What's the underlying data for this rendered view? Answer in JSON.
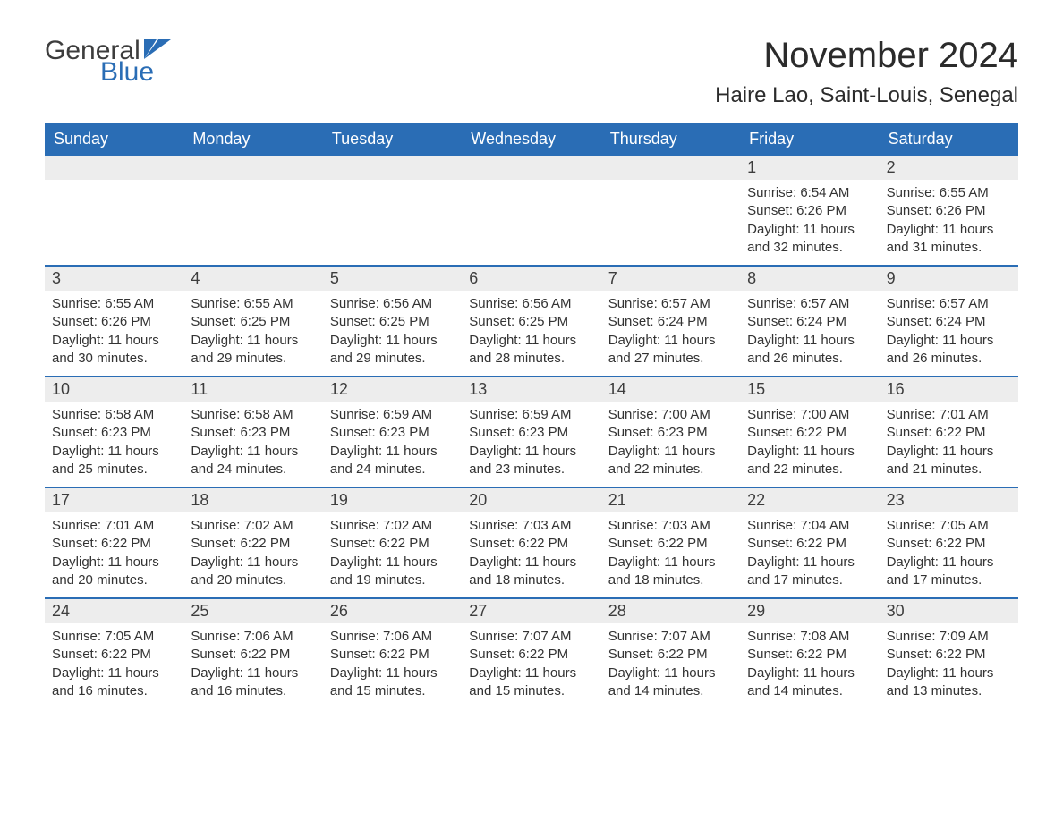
{
  "logo": {
    "text_general": "General",
    "text_blue": "Blue",
    "flag_color": "#2a6db5"
  },
  "header": {
    "month_title": "November 2024",
    "location": "Haire Lao, Saint-Louis, Senegal"
  },
  "colors": {
    "header_bg": "#2a6db5",
    "header_fg": "#ffffff",
    "daynum_bg": "#ededed",
    "text": "#333333",
    "rule": "#2a6db5"
  },
  "weekdays": [
    "Sunday",
    "Monday",
    "Tuesday",
    "Wednesday",
    "Thursday",
    "Friday",
    "Saturday"
  ],
  "grid": [
    [
      null,
      null,
      null,
      null,
      null,
      {
        "n": "1",
        "sunrise": "6:54 AM",
        "sunset": "6:26 PM",
        "daylight": "11 hours and 32 minutes."
      },
      {
        "n": "2",
        "sunrise": "6:55 AM",
        "sunset": "6:26 PM",
        "daylight": "11 hours and 31 minutes."
      }
    ],
    [
      {
        "n": "3",
        "sunrise": "6:55 AM",
        "sunset": "6:26 PM",
        "daylight": "11 hours and 30 minutes."
      },
      {
        "n": "4",
        "sunrise": "6:55 AM",
        "sunset": "6:25 PM",
        "daylight": "11 hours and 29 minutes."
      },
      {
        "n": "5",
        "sunrise": "6:56 AM",
        "sunset": "6:25 PM",
        "daylight": "11 hours and 29 minutes."
      },
      {
        "n": "6",
        "sunrise": "6:56 AM",
        "sunset": "6:25 PM",
        "daylight": "11 hours and 28 minutes."
      },
      {
        "n": "7",
        "sunrise": "6:57 AM",
        "sunset": "6:24 PM",
        "daylight": "11 hours and 27 minutes."
      },
      {
        "n": "8",
        "sunrise": "6:57 AM",
        "sunset": "6:24 PM",
        "daylight": "11 hours and 26 minutes."
      },
      {
        "n": "9",
        "sunrise": "6:57 AM",
        "sunset": "6:24 PM",
        "daylight": "11 hours and 26 minutes."
      }
    ],
    [
      {
        "n": "10",
        "sunrise": "6:58 AM",
        "sunset": "6:23 PM",
        "daylight": "11 hours and 25 minutes."
      },
      {
        "n": "11",
        "sunrise": "6:58 AM",
        "sunset": "6:23 PM",
        "daylight": "11 hours and 24 minutes."
      },
      {
        "n": "12",
        "sunrise": "6:59 AM",
        "sunset": "6:23 PM",
        "daylight": "11 hours and 24 minutes."
      },
      {
        "n": "13",
        "sunrise": "6:59 AM",
        "sunset": "6:23 PM",
        "daylight": "11 hours and 23 minutes."
      },
      {
        "n": "14",
        "sunrise": "7:00 AM",
        "sunset": "6:23 PM",
        "daylight": "11 hours and 22 minutes."
      },
      {
        "n": "15",
        "sunrise": "7:00 AM",
        "sunset": "6:22 PM",
        "daylight": "11 hours and 22 minutes."
      },
      {
        "n": "16",
        "sunrise": "7:01 AM",
        "sunset": "6:22 PM",
        "daylight": "11 hours and 21 minutes."
      }
    ],
    [
      {
        "n": "17",
        "sunrise": "7:01 AM",
        "sunset": "6:22 PM",
        "daylight": "11 hours and 20 minutes."
      },
      {
        "n": "18",
        "sunrise": "7:02 AM",
        "sunset": "6:22 PM",
        "daylight": "11 hours and 20 minutes."
      },
      {
        "n": "19",
        "sunrise": "7:02 AM",
        "sunset": "6:22 PM",
        "daylight": "11 hours and 19 minutes."
      },
      {
        "n": "20",
        "sunrise": "7:03 AM",
        "sunset": "6:22 PM",
        "daylight": "11 hours and 18 minutes."
      },
      {
        "n": "21",
        "sunrise": "7:03 AM",
        "sunset": "6:22 PM",
        "daylight": "11 hours and 18 minutes."
      },
      {
        "n": "22",
        "sunrise": "7:04 AM",
        "sunset": "6:22 PM",
        "daylight": "11 hours and 17 minutes."
      },
      {
        "n": "23",
        "sunrise": "7:05 AM",
        "sunset": "6:22 PM",
        "daylight": "11 hours and 17 minutes."
      }
    ],
    [
      {
        "n": "24",
        "sunrise": "7:05 AM",
        "sunset": "6:22 PM",
        "daylight": "11 hours and 16 minutes."
      },
      {
        "n": "25",
        "sunrise": "7:06 AM",
        "sunset": "6:22 PM",
        "daylight": "11 hours and 16 minutes."
      },
      {
        "n": "26",
        "sunrise": "7:06 AM",
        "sunset": "6:22 PM",
        "daylight": "11 hours and 15 minutes."
      },
      {
        "n": "27",
        "sunrise": "7:07 AM",
        "sunset": "6:22 PM",
        "daylight": "11 hours and 15 minutes."
      },
      {
        "n": "28",
        "sunrise": "7:07 AM",
        "sunset": "6:22 PM",
        "daylight": "11 hours and 14 minutes."
      },
      {
        "n": "29",
        "sunrise": "7:08 AM",
        "sunset": "6:22 PM",
        "daylight": "11 hours and 14 minutes."
      },
      {
        "n": "30",
        "sunrise": "7:09 AM",
        "sunset": "6:22 PM",
        "daylight": "11 hours and 13 minutes."
      }
    ]
  ],
  "labels": {
    "sunrise": "Sunrise: ",
    "sunset": "Sunset: ",
    "daylight": "Daylight: "
  }
}
